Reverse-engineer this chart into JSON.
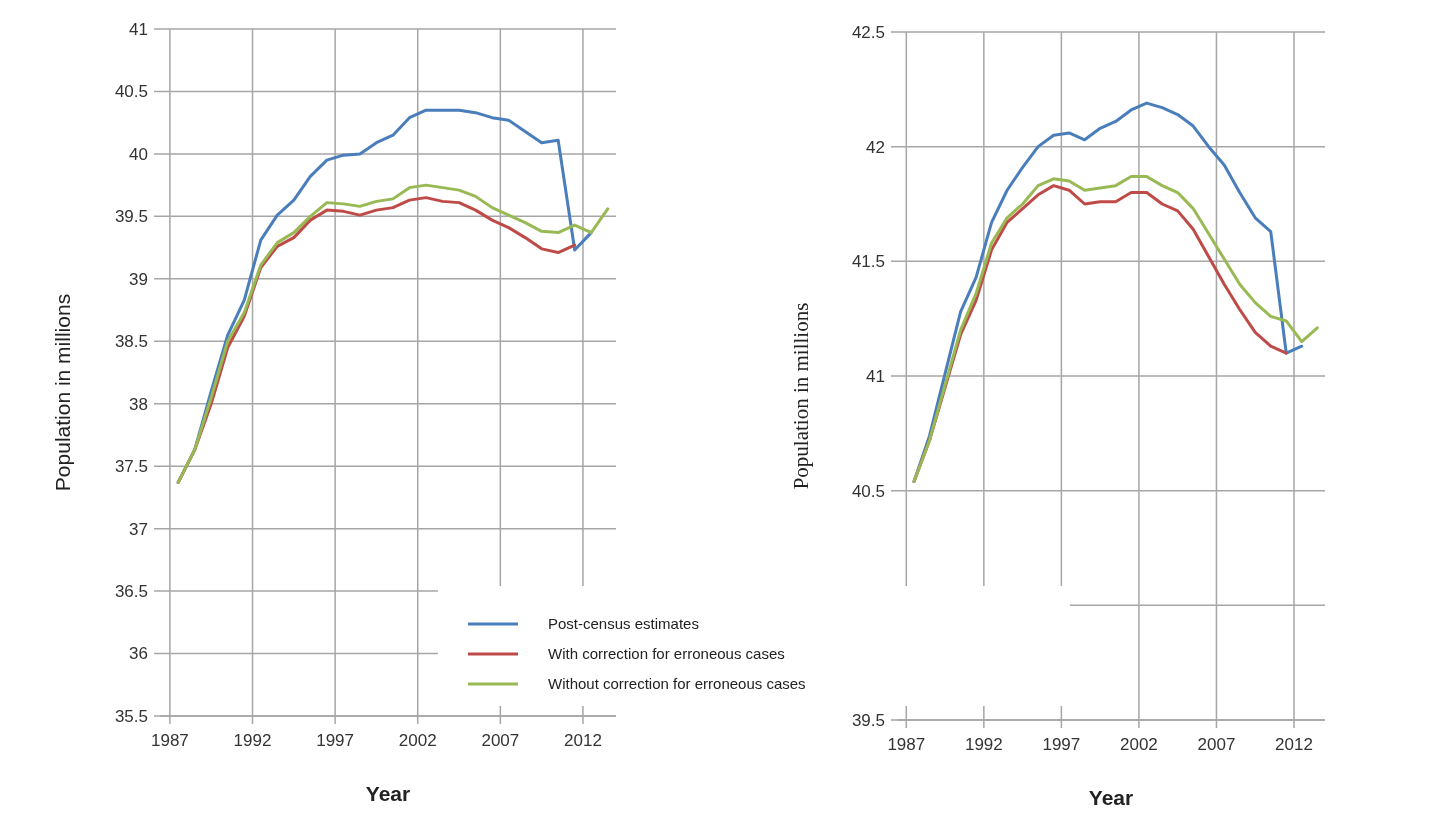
{
  "chart_data": [
    {
      "type": "line",
      "ylabel": "Population in millions",
      "xlabel": "Year",
      "xlim": [
        1986.4,
        2014
      ],
      "xticks": [
        1987,
        1992,
        1997,
        2002,
        2007,
        2012
      ],
      "ylim": [
        35.5,
        41
      ],
      "yticks": [
        35.5,
        36,
        36.5,
        37,
        37.5,
        38,
        38.5,
        39,
        39.5,
        40,
        40.5,
        41
      ],
      "grid": true,
      "legend": "bottom right",
      "series": [
        {
          "name": "Post-census estimates",
          "color": "#4a7ebb",
          "x": [
            1987.5,
            1988.5,
            1989.5,
            1990.5,
            1991.5,
            1992.5,
            1993.5,
            1994.5,
            1995.5,
            1996.5,
            1997.5,
            1998.5,
            1999.5,
            2000.5,
            2001.5,
            2002.5,
            2003.5,
            2004.5,
            2005.5,
            2006.5,
            2007.5,
            2008.5,
            2009.5,
            2010.5,
            2011.5,
            2012.5
          ],
          "values": [
            37.37,
            37.63,
            38.1,
            38.55,
            38.83,
            39.31,
            39.51,
            39.63,
            39.82,
            39.95,
            39.99,
            40.0,
            40.09,
            40.15,
            40.29,
            40.35,
            40.35,
            40.35,
            40.33,
            40.29,
            40.27,
            40.18,
            40.09,
            40.11,
            39.23,
            39.37
          ]
        },
        {
          "name": "With correction for erroneous cases",
          "color": "#be4b48",
          "x": [
            1987.5,
            1988.5,
            1989.5,
            1990.5,
            1991.5,
            1992.5,
            1993.5,
            1994.5,
            1995.5,
            1996.5,
            1997.5,
            1998.5,
            1999.5,
            2000.5,
            2001.5,
            2002.5,
            2003.5,
            2004.5,
            2005.5,
            2006.5,
            2007.5,
            2008.5,
            2009.5,
            2010.5,
            2011.5
          ],
          "values": [
            37.37,
            37.63,
            38.0,
            38.45,
            38.7,
            39.09,
            39.26,
            39.33,
            39.47,
            39.55,
            39.54,
            39.51,
            39.55,
            39.57,
            39.63,
            39.65,
            39.62,
            39.61,
            39.55,
            39.47,
            39.41,
            39.33,
            39.24,
            39.21,
            39.27
          ]
        },
        {
          "name": "Without correction for erroneous cases",
          "color": "#98b954",
          "x": [
            1987.5,
            1988.5,
            1989.5,
            1990.5,
            1991.5,
            1992.5,
            1993.5,
            1994.5,
            1995.5,
            1996.5,
            1997.5,
            1998.5,
            1999.5,
            2000.5,
            2001.5,
            2002.5,
            2003.5,
            2004.5,
            2005.5,
            2006.5,
            2007.5,
            2008.5,
            2009.5,
            2010.5,
            2011.5,
            2012.5,
            2013.5
          ],
          "values": [
            37.37,
            37.63,
            38.05,
            38.5,
            38.73,
            39.11,
            39.29,
            39.37,
            39.5,
            39.61,
            39.6,
            39.58,
            39.62,
            39.64,
            39.73,
            39.75,
            39.73,
            39.71,
            39.66,
            39.57,
            39.51,
            39.45,
            39.38,
            39.37,
            39.43,
            39.37,
            39.56
          ]
        }
      ]
    },
    {
      "type": "line",
      "ylabel": "Population in millions",
      "xlabel": "Year",
      "xlim": [
        1986.4,
        2014
      ],
      "xticks": [
        1987,
        1992,
        1997,
        2002,
        2007,
        2012
      ],
      "ylim": [
        39.5,
        42.5
      ],
      "yticks": [
        39.5,
        {
          "value": 40,
          "label": null
        },
        40.5,
        41,
        41.5,
        42,
        42.5
      ],
      "grid": true,
      "series": [
        {
          "color": "#4a7ebb",
          "x": [
            1987.5,
            1988.5,
            1989.5,
            1990.5,
            1991.5,
            1992.5,
            1993.5,
            1994.5,
            1995.5,
            1996.5,
            1997.5,
            1998.5,
            1999.5,
            2000.5,
            2001.5,
            2002.5,
            2003.5,
            2004.5,
            2005.5,
            2006.5,
            2007.5,
            2008.5,
            2009.5,
            2010.5,
            2011.5,
            2012.5
          ],
          "values": [
            40.54,
            40.74,
            41.01,
            41.28,
            41.43,
            41.67,
            41.81,
            41.91,
            42.0,
            42.05,
            42.06,
            42.03,
            42.08,
            42.11,
            42.16,
            42.19,
            42.17,
            42.14,
            42.09,
            42.0,
            41.92,
            41.8,
            41.69,
            41.63,
            41.1,
            41.13
          ]
        },
        {
          "color": "#be4b48",
          "x": [
            1987.5,
            1988.5,
            1989.5,
            1990.5,
            1991.5,
            1992.5,
            1993.5,
            1994.5,
            1995.5,
            1996.5,
            1997.5,
            1998.5,
            1999.5,
            2000.5,
            2001.5,
            2002.5,
            2003.5,
            2004.5,
            2005.5,
            2006.5,
            2007.5,
            2008.5,
            2009.5,
            2010.5,
            2011.5
          ],
          "values": [
            40.54,
            40.72,
            40.95,
            41.18,
            41.33,
            41.55,
            41.67,
            41.73,
            41.79,
            41.83,
            41.81,
            41.75,
            41.76,
            41.76,
            41.8,
            41.8,
            41.75,
            41.72,
            41.64,
            41.52,
            41.4,
            41.29,
            41.19,
            41.13,
            41.1
          ]
        },
        {
          "color": "#98b954",
          "x": [
            1987.5,
            1988.5,
            1989.5,
            1990.5,
            1991.5,
            1992.5,
            1993.5,
            1994.5,
            1995.5,
            1996.5,
            1997.5,
            1998.5,
            1999.5,
            2000.5,
            2001.5,
            2002.5,
            2003.5,
            2004.5,
            2005.5,
            2006.5,
            2007.5,
            2008.5,
            2009.5,
            2010.5,
            2011.5,
            2012.5,
            2013.5
          ],
          "values": [
            40.54,
            40.72,
            40.96,
            41.2,
            41.36,
            41.58,
            41.69,
            41.75,
            41.83,
            41.86,
            41.85,
            41.81,
            41.82,
            41.83,
            41.87,
            41.87,
            41.83,
            41.8,
            41.73,
            41.62,
            41.51,
            41.4,
            41.32,
            41.26,
            41.24,
            41.15,
            41.21
          ]
        }
      ]
    }
  ]
}
